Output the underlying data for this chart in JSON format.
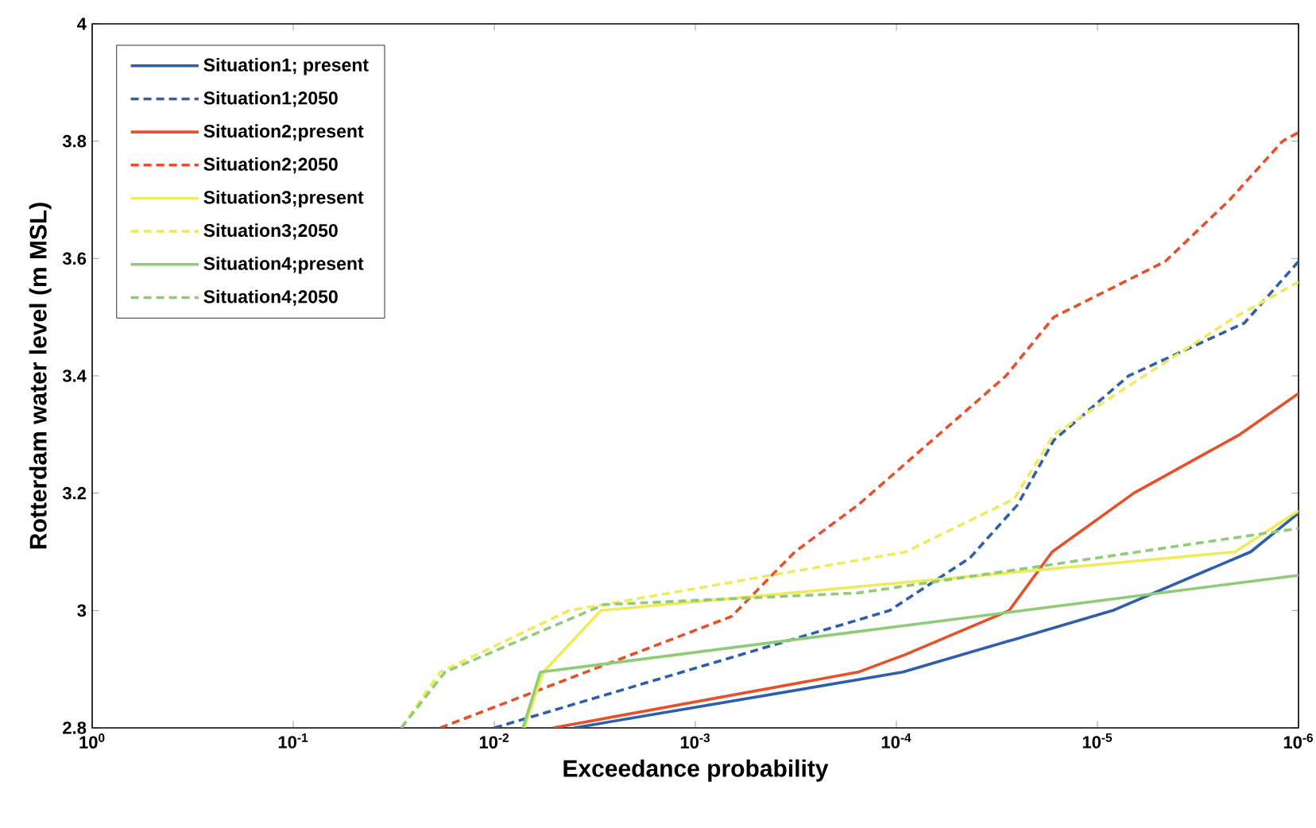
{
  "chart_data": {
    "type": "line",
    "xlabel": "Exceedance probability",
    "ylabel": "Rotterdam water level (m MSL)",
    "log": "x",
    "grid": false,
    "legend": "top left",
    "marker": "none",
    "xlim": [
      1,
      1e-06
    ],
    "xticks": [
      {
        "value": 1,
        "label": "10$^{0}$"
      },
      {
        "value": 0.1,
        "label": "10$^{-1}$"
      },
      {
        "value": 0.01,
        "label": "10$^{-2}$"
      },
      {
        "value": 0.001,
        "label": "10$^{-3}$"
      },
      {
        "value": 0.0001,
        "label": "10$^{-4}$"
      },
      {
        "value": 1e-05,
        "label": "10$^{-5}$"
      },
      {
        "value": 1e-06,
        "label": "10$^{-6}$"
      }
    ],
    "ylim": [
      2.8,
      4
    ],
    "yticks": [
      2.8,
      3,
      3.2,
      3.4,
      3.6,
      3.8,
      4
    ],
    "series": [
      {
        "name": "Situation1; present",
        "color": "#2e5fae",
        "line_style": "solid",
        "x": [
          0.004,
          9.3e-05,
          8.4e-06,
          1.73e-06,
          1e-06
        ],
        "values": [
          2.8,
          2.895,
          3.0,
          3.1,
          3.166
        ]
      },
      {
        "name": "Situation1;2050",
        "color": "#2e5fae",
        "line_style": "dashed",
        "x": [
          0.01,
          0.000108,
          4.3e-05,
          2.5e-05,
          1.65e-05,
          7e-06,
          1.86e-06,
          1e-06
        ],
        "values": [
          2.8,
          3.0,
          3.09,
          3.18,
          3.29,
          3.4,
          3.49,
          3.595
        ]
      },
      {
        "name": "Situation2;present",
        "color": "#e8502a",
        "line_style": "solid",
        "x": [
          0.0051,
          0.000155,
          9e-05,
          2.75e-05,
          1.68e-05,
          6.6e-06,
          1.96e-06,
          1e-06
        ],
        "values": [
          2.8,
          2.895,
          2.925,
          3.0,
          3.1,
          3.2,
          3.3,
          3.37
        ]
      },
      {
        "name": "Situation2;2050",
        "color": "#e8502a",
        "line_style": "dashed",
        "x": [
          0.0186,
          0.00066,
          0.00032,
          0.000155,
          2.85e-05,
          1.65e-05,
          4.6e-06,
          2.2e-06,
          1.2e-06,
          1e-06
        ],
        "values": [
          2.8,
          2.99,
          3.1,
          3.18,
          3.4,
          3.5,
          3.595,
          3.7,
          3.8,
          3.815
        ]
      },
      {
        "name": "Situation3;present",
        "color": "#f0eb5a",
        "line_style": "solid",
        "x": [
          0.0071,
          0.0057,
          0.00295,
          2.07e-06,
          1e-06
        ],
        "values": [
          2.8,
          2.895,
          3.0,
          3.1,
          3.17
        ]
      },
      {
        "name": "Situation3;2050",
        "color": "#f0eb5a",
        "line_style": "dashed",
        "x": [
          0.029,
          0.0186,
          0.00425,
          9e-05,
          2.6e-05,
          1.65e-05,
          2.07e-06,
          1e-06
        ],
        "values": [
          2.8,
          2.895,
          3.0,
          3.1,
          3.19,
          3.3,
          3.5,
          3.56
        ]
      },
      {
        "name": "Situation4;present",
        "color": "#8fcc78",
        "line_style": "solid",
        "x": [
          0.0072,
          0.0059,
          1e-06
        ],
        "values": [
          2.8,
          2.895,
          3.06
        ]
      },
      {
        "name": "Situation4;2050",
        "color": "#8fcc78",
        "line_style": "dashed",
        "x": [
          0.029,
          0.0176,
          0.00285,
          0.000155,
          1e-06
        ],
        "values": [
          2.8,
          2.895,
          3.01,
          3.03,
          3.14
        ]
      }
    ]
  }
}
